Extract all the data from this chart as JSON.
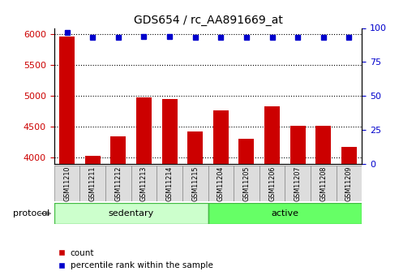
{
  "title": "GDS654 / rc_AA891669_at",
  "samples": [
    "GSM11210",
    "GSM11211",
    "GSM11212",
    "GSM11213",
    "GSM11214",
    "GSM11215",
    "GSM11204",
    "GSM11205",
    "GSM11206",
    "GSM11207",
    "GSM11208",
    "GSM11209"
  ],
  "counts": [
    5960,
    4030,
    4350,
    4980,
    4950,
    4420,
    4760,
    4310,
    4830,
    4520,
    4520,
    4180
  ],
  "percentile_ranks": [
    97,
    93,
    93,
    94,
    94,
    93,
    93,
    93,
    93,
    93,
    93,
    93
  ],
  "groups": [
    "sedentary",
    "sedentary",
    "sedentary",
    "sedentary",
    "sedentary",
    "sedentary",
    "active",
    "active",
    "active",
    "active",
    "active",
    "active"
  ],
  "group_colors": {
    "sedentary": "#ccffcc",
    "active": "#66ff66"
  },
  "bar_color": "#cc0000",
  "dot_color": "#0000cc",
  "ylim_left": [
    3900,
    6100
  ],
  "ylim_right": [
    0,
    100
  ],
  "yticks_left": [
    4000,
    4500,
    5000,
    5500,
    6000
  ],
  "yticks_right": [
    0,
    25,
    50,
    75,
    100
  ],
  "tick_label_color_left": "#cc0000",
  "tick_label_color_right": "#0000cc",
  "protocol_label": "protocol",
  "sedentary_label": "sedentary",
  "active_label": "active",
  "legend_count_label": "count",
  "legend_percentile_label": "percentile rank within the sample",
  "background_color": "#ffffff",
  "tick_box_color": "#dddddd",
  "tick_box_edge": "#888888",
  "group_edge_color": "#44bb44",
  "arrow_color": "#888888"
}
